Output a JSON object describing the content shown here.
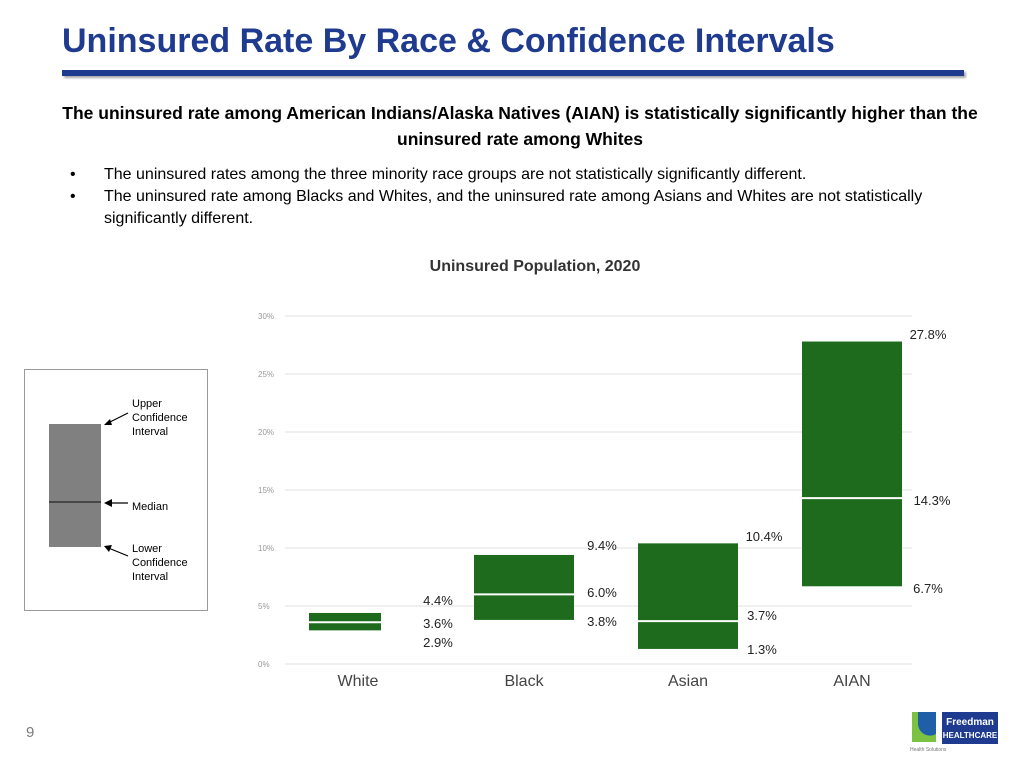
{
  "slide": {
    "title": "Uninsured Rate By Race & Confidence Intervals",
    "headline": "The uninsured rate among American Indians/Alaska Natives (AIAN) is statistically significantly higher than the uninsured rate among Whites",
    "bullets": [
      "The uninsured rates among the three minority race groups are not statistically significantly different.",
      "The uninsured rate among Blacks and Whites, and the uninsured rate among Asians and Whites are not statistically significantly different."
    ],
    "page_number": "9",
    "accent_color": "#1f3b8f"
  },
  "legend": {
    "upper": [
      "Upper",
      "Confidence",
      "Interval"
    ],
    "median": "Median",
    "lower": [
      "Lower",
      "Confidence",
      "Interval"
    ]
  },
  "logo": {
    "name": "Freedman",
    "sub": "HEALTHCARE",
    "tag": "Health Solutions"
  },
  "chart_data": {
    "type": "box",
    "title": "Uninsured Population, 2020",
    "categories": [
      "White",
      "Black",
      "Asian",
      "AIAN"
    ],
    "lower": [
      2.9,
      3.8,
      1.3,
      6.7
    ],
    "median": [
      3.6,
      6.0,
      3.7,
      14.3
    ],
    "upper": [
      4.4,
      9.4,
      10.4,
      27.8
    ],
    "lower_labels": [
      "2.9%",
      "3.8%",
      "1.3%",
      "6.7%"
    ],
    "median_labels": [
      "3.6%",
      "6.0%",
      "3.7%",
      "14.3%"
    ],
    "upper_labels": [
      "4.4%",
      "9.4%",
      "10.4%",
      "27.8%"
    ],
    "yticks": [
      "0%",
      "5%",
      "10%",
      "15%",
      "20%",
      "25%",
      "30%"
    ],
    "ylim": [
      0,
      30
    ],
    "grid": true,
    "box_color": "#1e6b1e",
    "median_color": "#ffffff"
  }
}
